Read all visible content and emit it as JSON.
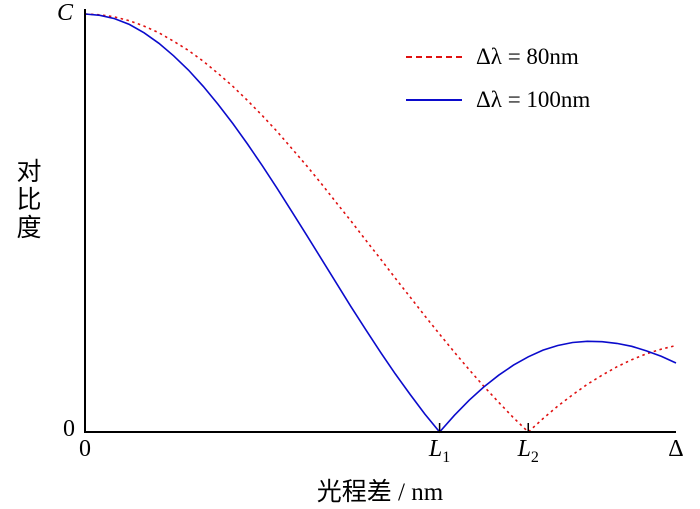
{
  "chart_data": {
    "type": "line",
    "title": "",
    "xlabel": "光程差 / nm",
    "ylabel": "对比度",
    "xlim": [
      0,
      1
    ],
    "ylim": [
      0,
      1
    ],
    "grid": false,
    "y_axis": {
      "top_label": "C",
      "bottom_label": "0"
    },
    "x_ticks": [
      {
        "label": "0",
        "sub": "",
        "pos": 0
      },
      {
        "label": "L",
        "sub": "1",
        "pos": 0.6
      },
      {
        "label": "L",
        "sub": "2",
        "pos": 0.75
      },
      {
        "label": "Δ",
        "sub": "",
        "pos": 1
      }
    ],
    "legend": {
      "position": "upper right"
    },
    "series": [
      {
        "name": "Δλ = 80nm",
        "color": "#e01010",
        "style": "dashed",
        "first_zero_x": 0.75,
        "x": [
          0,
          0.025,
          0.05,
          0.075,
          0.1,
          0.125,
          0.15,
          0.175,
          0.2,
          0.225,
          0.25,
          0.275,
          0.3,
          0.325,
          0.35,
          0.375,
          0.4,
          0.425,
          0.45,
          0.475,
          0.5,
          0.525,
          0.55,
          0.575,
          0.6,
          0.625,
          0.65,
          0.675,
          0.7,
          0.725,
          0.75,
          0.775,
          0.8,
          0.825,
          0.85,
          0.875,
          0.9,
          0.925,
          0.95,
          0.975,
          1.0
        ],
        "y": [
          1.0,
          0.998,
          0.993,
          0.984,
          0.971,
          0.955,
          0.935,
          0.913,
          0.887,
          0.858,
          0.827,
          0.793,
          0.757,
          0.719,
          0.678,
          0.637,
          0.594,
          0.549,
          0.505,
          0.459,
          0.414,
          0.368,
          0.323,
          0.278,
          0.234,
          0.191,
          0.149,
          0.109,
          0.071,
          0.034,
          0.0,
          0.032,
          0.062,
          0.089,
          0.114,
          0.136,
          0.156,
          0.173,
          0.187,
          0.198,
          0.207
        ]
      },
      {
        "name": "Δλ = 100nm",
        "color": "#0b0bcc",
        "style": "solid",
        "first_zero_x": 0.6,
        "x": [
          0,
          0.025,
          0.05,
          0.075,
          0.1,
          0.125,
          0.15,
          0.175,
          0.2,
          0.225,
          0.25,
          0.275,
          0.3,
          0.325,
          0.35,
          0.375,
          0.4,
          0.425,
          0.45,
          0.475,
          0.5,
          0.525,
          0.55,
          0.575,
          0.6,
          0.625,
          0.65,
          0.675,
          0.7,
          0.725,
          0.75,
          0.775,
          0.8,
          0.825,
          0.85,
          0.875,
          0.9,
          0.925,
          0.95,
          0.975,
          1.0
        ],
        "y": [
          1.0,
          0.997,
          0.989,
          0.975,
          0.955,
          0.93,
          0.9,
          0.866,
          0.827,
          0.784,
          0.738,
          0.689,
          0.637,
          0.583,
          0.527,
          0.471,
          0.414,
          0.357,
          0.3,
          0.245,
          0.191,
          0.139,
          0.09,
          0.043,
          0.0,
          0.04,
          0.076,
          0.108,
          0.136,
          0.16,
          0.18,
          0.196,
          0.207,
          0.214,
          0.217,
          0.216,
          0.212,
          0.205,
          0.194,
          0.181,
          0.165
        ]
      }
    ]
  }
}
